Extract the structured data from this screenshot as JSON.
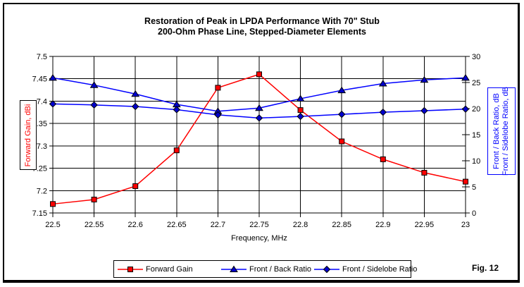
{
  "fig_label": "Fig. 12",
  "chart_data": {
    "type": "line",
    "title_line1": "Restoration of Peak in LPDA Performance With 70\" Stub",
    "title_line2": "200-Ohm Phase Line, Stepped-Diameter Elements",
    "xlabel": "Frequency, MHz",
    "x": [
      22.5,
      22.55,
      22.6,
      22.65,
      22.7,
      22.75,
      22.8,
      22.85,
      22.9,
      22.95,
      23
    ],
    "x_tick_labels": [
      "22.5",
      "22.55",
      "22.6",
      "22.65",
      "22.7",
      "22.75",
      "22.8",
      "22.85",
      "22.9",
      "22.95",
      "23"
    ],
    "grid": true,
    "legend_position": "bottom",
    "left_axis": {
      "label": "Forward Gain,  dBi",
      "min": 7.15,
      "max": 7.5,
      "step": 0.05,
      "tick_labels": [
        "7.5",
        "7.45",
        "7.4",
        "7.35",
        "7.3",
        "7.25",
        "7.2",
        "7.15"
      ],
      "color": "#ff0000"
    },
    "right_axis": {
      "label_line1": "Front / Back Ratio, dB",
      "label_line2": "Front / Sidelobe Ratio, dB",
      "min": 0,
      "max": 30,
      "step": 5,
      "tick_labels": [
        "30",
        "25",
        "20",
        "15",
        "10",
        "5",
        "0"
      ],
      "color": "#0000ff"
    },
    "series": [
      {
        "name": "Forward Gain",
        "axis": "left",
        "color": "#ff0000",
        "marker": "square",
        "marker_fill": "#ff0000",
        "values": [
          7.17,
          7.18,
          7.21,
          7.29,
          7.43,
          7.46,
          7.38,
          7.31,
          7.27,
          7.24,
          7.22
        ]
      },
      {
        "name": "Front / Back Ratio",
        "axis": "right",
        "color": "#0000ff",
        "marker": "triangle",
        "marker_fill": "#0000cc",
        "values": [
          25.9,
          24.5,
          22.8,
          20.8,
          19.5,
          20.1,
          21.9,
          23.5,
          24.8,
          25.5,
          25.9
        ]
      },
      {
        "name": "Front / Sidelobe Ratio",
        "axis": "right",
        "color": "#0000ff",
        "marker": "diamond",
        "marker_fill": "#0000cc",
        "values": [
          20.9,
          20.7,
          20.4,
          19.8,
          18.8,
          18.2,
          18.5,
          18.9,
          19.3,
          19.6,
          19.9
        ]
      }
    ]
  }
}
